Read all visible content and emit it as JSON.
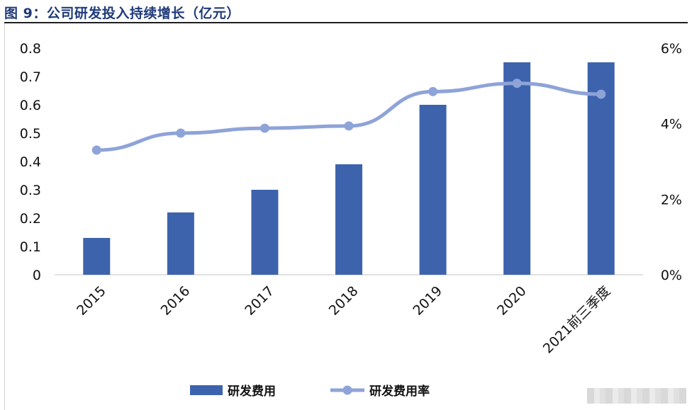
{
  "title": "图 9：公司研发投入持续增长（亿元）",
  "colors": {
    "bar": "#3d63ad",
    "line": "#8ea3d8",
    "title": "#1f3a7a"
  },
  "chart_data": {
    "type": "bar+line",
    "categories": [
      "2015",
      "2016",
      "2017",
      "2018",
      "2019",
      "2020",
      "2021前三季度"
    ],
    "series": [
      {
        "name": "研发费用",
        "type": "bar",
        "axis": "left",
        "values": [
          0.13,
          0.22,
          0.3,
          0.39,
          0.6,
          0.75,
          0.75
        ]
      },
      {
        "name": "研发费用率",
        "type": "line",
        "axis": "right",
        "values": [
          3.3,
          3.75,
          3.88,
          3.94,
          4.85,
          5.07,
          4.78
        ]
      }
    ],
    "left_axis": {
      "ylim": [
        0,
        0.8
      ],
      "ticks": [
        "0",
        "0.1",
        "0.2",
        "0.3",
        "0.4",
        "0.5",
        "0.6",
        "0.7",
        "0.8"
      ]
    },
    "right_axis": {
      "ylim": [
        0,
        6
      ],
      "ticks": [
        "0%",
        "2%",
        "4%",
        "6%"
      ]
    },
    "legend": {
      "placement": "bottom",
      "items": [
        "研发费用",
        "研发费用率"
      ]
    },
    "grid": false
  }
}
